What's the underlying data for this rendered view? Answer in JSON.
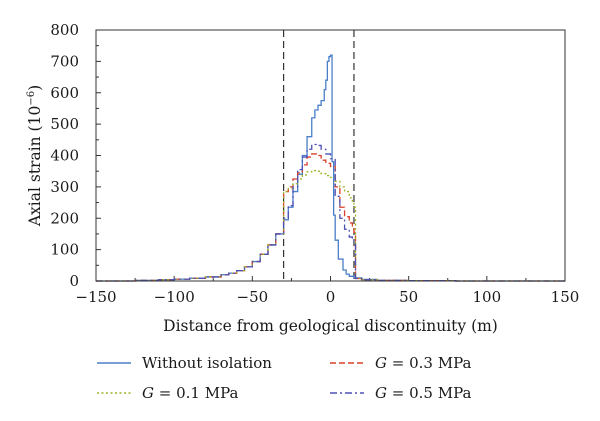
{
  "chart_data": {
    "type": "line",
    "xlabel": "Distance from geological discontinuity (m)",
    "ylabel": "Axial strain (10",
    "ylabel_exponent": "−6",
    "ylabel_close": ")",
    "xlim": [
      -150,
      150
    ],
    "ylim": [
      0,
      800
    ],
    "x_ticks": [
      -150,
      -100,
      -50,
      0,
      50,
      100,
      150
    ],
    "x_tick_labels": [
      "−150",
      "−100",
      "−50",
      "0",
      "50",
      "100",
      "150"
    ],
    "y_ticks": [
      0,
      100,
      200,
      300,
      400,
      500,
      600,
      700,
      800
    ],
    "y_tick_labels": [
      "0",
      "100",
      "200",
      "300",
      "400",
      "500",
      "600",
      "700",
      "800"
    ],
    "grid": false,
    "legend_position": "bottom",
    "reference_lines_x": [
      -30,
      15
    ],
    "series": [
      {
        "name": "Without isolation",
        "legend_prefix": "",
        "legend_suffix": "Without isolation",
        "color": "#4a7fc8",
        "style": "solid",
        "x": [
          -150,
          -125,
          -110,
          -100,
          -90,
          -80,
          -70,
          -65,
          -60,
          -55,
          -50,
          -45,
          -40,
          -35,
          -30,
          -27,
          -24,
          -21,
          -18,
          -15,
          -12,
          -10,
          -8,
          -6,
          -4,
          -3,
          -2,
          -1,
          0,
          1,
          2,
          3,
          5,
          8,
          10,
          12,
          15,
          20,
          30,
          50,
          80,
          150
        ],
        "y": [
          0,
          2,
          4,
          6,
          9,
          13,
          20,
          25,
          33,
          45,
          62,
          85,
          115,
          150,
          195,
          235,
          285,
          340,
          400,
          460,
          520,
          545,
          560,
          575,
          610,
          640,
          700,
          715,
          720,
          380,
          210,
          130,
          70,
          35,
          22,
          15,
          10,
          5,
          2,
          1,
          0,
          0
        ]
      },
      {
        "name": "G = 0.3 MPa",
        "legend_prefix": "G",
        "legend_suffix": " = 0.3 MPa",
        "color": "#d9402a",
        "style": "dashed",
        "x": [
          -150,
          -125,
          -110,
          -100,
          -90,
          -80,
          -70,
          -65,
          -60,
          -55,
          -50,
          -45,
          -40,
          -35,
          -30,
          -27,
          -24,
          -21,
          -18,
          -15,
          -12,
          -9,
          -6,
          -3,
          0,
          3,
          6,
          9,
          12,
          14,
          15,
          16,
          20,
          30,
          50,
          80,
          150
        ],
        "y": [
          0,
          2,
          4,
          6,
          9,
          13,
          20,
          25,
          33,
          45,
          62,
          85,
          115,
          150,
          285,
          300,
          325,
          345,
          370,
          395,
          405,
          400,
          385,
          375,
          365,
          300,
          235,
          205,
          185,
          175,
          155,
          8,
          4,
          2,
          1,
          0,
          0
        ]
      },
      {
        "name": "G = 0.1 MPa",
        "legend_prefix": "G",
        "legend_suffix": " = 0.1 MPa",
        "color": "#9bb428",
        "style": "dotted",
        "x": [
          -150,
          -125,
          -110,
          -100,
          -90,
          -80,
          -70,
          -65,
          -60,
          -55,
          -50,
          -45,
          -40,
          -35,
          -30,
          -27,
          -24,
          -21,
          -18,
          -15,
          -12,
          -9,
          -6,
          -3,
          0,
          3,
          6,
          9,
          12,
          14,
          15,
          16,
          20,
          30,
          50,
          80,
          150
        ],
        "y": [
          0,
          2,
          4,
          6,
          9,
          13,
          20,
          25,
          33,
          45,
          62,
          85,
          115,
          150,
          285,
          295,
          310,
          325,
          338,
          348,
          352,
          350,
          342,
          336,
          330,
          318,
          300,
          285,
          265,
          250,
          235,
          8,
          4,
          2,
          1,
          0,
          0
        ]
      },
      {
        "name": "G = 0.5 MPa",
        "legend_prefix": "G",
        "legend_suffix": " = 0.5 MPa",
        "color": "#4f50b5",
        "style": "dashdot",
        "x": [
          -150,
          -125,
          -110,
          -100,
          -90,
          -80,
          -70,
          -65,
          -60,
          -55,
          -50,
          -45,
          -40,
          -35,
          -30,
          -27,
          -24,
          -21,
          -18,
          -15,
          -12,
          -9,
          -6,
          -3,
          0,
          3,
          6,
          9,
          12,
          14,
          15,
          16,
          20,
          30,
          50,
          80,
          150
        ],
        "y": [
          0,
          2,
          4,
          6,
          9,
          13,
          20,
          25,
          33,
          45,
          62,
          85,
          115,
          150,
          200,
          240,
          300,
          355,
          395,
          420,
          435,
          432,
          420,
          405,
          390,
          270,
          200,
          165,
          140,
          130,
          125,
          8,
          4,
          2,
          1,
          0,
          0
        ]
      }
    ]
  }
}
